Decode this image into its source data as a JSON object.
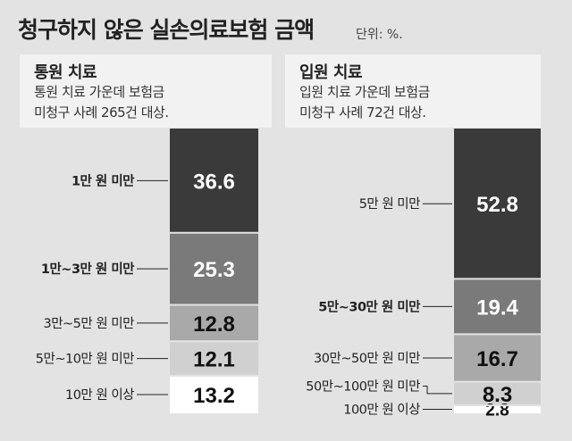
{
  "title": "청구하지 않은 실손의료보험 금액",
  "unit": "단위: %.",
  "chart_data": [
    {
      "type": "bar",
      "stacked": true,
      "heading": "통원 치료",
      "desc_line1": "통원 치료 가운데 보험금",
      "desc_line2": "미청구 사례 265건 대상.",
      "segments": [
        {
          "label": "1만 원 미만",
          "value": 36.6,
          "color": "#3a3a3a",
          "text_color": "#ffffff",
          "bold": true
        },
        {
          "label": "1만~3만 원 미만",
          "value": 25.3,
          "color": "#7a7a7a",
          "text_color": "#ffffff",
          "bold": true
        },
        {
          "label": "3만~5만 원 미만",
          "value": 12.8,
          "color": "#a9a9a9",
          "text_color": "#111111",
          "bold": false
        },
        {
          "label": "5만~10만 원 미만",
          "value": 12.1,
          "color": "#d0d0d0",
          "text_color": "#111111",
          "bold": false
        },
        {
          "label": "10만 원 이상",
          "value": 13.2,
          "color": "#ffffff",
          "text_color": "#111111",
          "bold": false
        }
      ]
    },
    {
      "type": "bar",
      "stacked": true,
      "heading": "입원 치료",
      "desc_line1": "입원 치료 가운데 보험금",
      "desc_line2": "미청구 사례 72건 대상.",
      "segments": [
        {
          "label": "5만 원 미만",
          "value": 52.8,
          "color": "#3a3a3a",
          "text_color": "#ffffff",
          "bold": false
        },
        {
          "label": "5만~30만 원 미만",
          "value": 19.4,
          "color": "#7a7a7a",
          "text_color": "#ffffff",
          "bold": true
        },
        {
          "label": "30만~50만 원 미만",
          "value": 16.7,
          "color": "#a9a9a9",
          "text_color": "#111111",
          "bold": false
        },
        {
          "label": "50만~100만 원 미만",
          "value": 8.3,
          "color": "#d0d0d0",
          "text_color": "#111111",
          "bold": false
        },
        {
          "label": "100만 원 이상",
          "value": 2.8,
          "color": "#ffffff",
          "text_color": "#111111",
          "bold": false
        }
      ]
    }
  ]
}
